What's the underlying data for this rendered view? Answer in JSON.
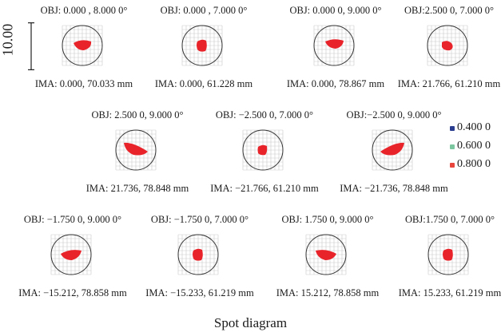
{
  "scale": {
    "label": "10.00"
  },
  "legend": [
    {
      "label": "0.400 0",
      "color": "#2b3d8f"
    },
    {
      "label": "0.600 0",
      "color": "#7cc7a0"
    },
    {
      "label": "0.800 0",
      "color": "#e8453c"
    }
  ],
  "spot_color": "#e8232a",
  "caption": "Spot diagram",
  "rows": [
    [
      {
        "obj": "OBJ: 0.000 , 8.000 0°",
        "ima": "IMA: 0.000, 70.033 mm",
        "shape": "wide"
      },
      {
        "obj": "OBJ: 0.000 , 7.000 0°",
        "ima": "IMA: 0.000, 61.228 mm",
        "shape": "round"
      },
      {
        "obj": "OBJ: 0.000 0, 9.000 0°",
        "ima": "IMA: 0.000, 78.867 mm",
        "shape": "wide-high"
      },
      {
        "obj": "OBJ:2.500 0, 7.000 0°",
        "ima": "IMA: 21.766, 61.210 mm",
        "shape": "round-tilt"
      }
    ],
    [
      {
        "obj": "OBJ: 2.500 0, 9.000 0°",
        "ima": "IMA: 21.736, 78.848 mm",
        "shape": "wedge-left"
      },
      {
        "obj": "OBJ: −2.500 0, 7.000 0°",
        "ima": "IMA: −21.766, 61.210 mm",
        "shape": "round-small"
      },
      {
        "obj": "OBJ:−2.500 0, 9.000 0°",
        "ima": "IMA: −21.736, 78.848 mm",
        "shape": "wedge-right"
      }
    ],
    [
      {
        "obj": "OBJ: −1.750 0, 9.000 0°",
        "ima": "IMA: −15.212, 78.858 mm",
        "shape": "wide-tilt-r"
      },
      {
        "obj": "OBJ: −1.750 0, 7.000 0°",
        "ima": "IMA: −15.233, 61.219 mm",
        "shape": "round"
      },
      {
        "obj": "OBJ: 1.750 0, 9.000 0°",
        "ima": "IMA: 15.212, 78.858 mm",
        "shape": "wide-tilt-l"
      },
      {
        "obj": "OBJ:1.750 0, 7.000 0°",
        "ima": "IMA: 15.233, 61.219 mm",
        "shape": "round"
      }
    ]
  ]
}
